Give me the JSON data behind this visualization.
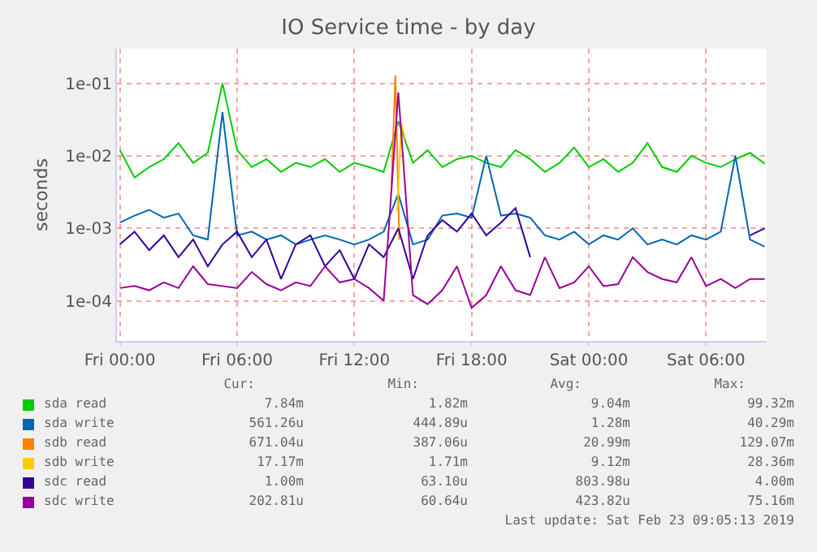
{
  "chart_data": {
    "type": "line",
    "title": "IO Service time - by day",
    "ylabel": "seconds",
    "log": "y",
    "grid": true,
    "legend": "bottom",
    "marker": "none",
    "line_style": "solid",
    "x": [
      "2019-02-22T00:00",
      "2019-02-22T00:45",
      "2019-02-22T01:30",
      "2019-02-22T02:15",
      "2019-02-22T03:00",
      "2019-02-22T03:45",
      "2019-02-22T04:30",
      "2019-02-22T05:15",
      "2019-02-22T06:00",
      "2019-02-22T06:45",
      "2019-02-22T07:30",
      "2019-02-22T08:15",
      "2019-02-22T09:00",
      "2019-02-22T09:45",
      "2019-02-22T10:30",
      "2019-02-22T11:15",
      "2019-02-22T12:00",
      "2019-02-22T12:45",
      "2019-02-22T13:30",
      "2019-02-22T14:15",
      "2019-02-22T15:00",
      "2019-02-22T15:45",
      "2019-02-22T16:30",
      "2019-02-22T17:15",
      "2019-02-22T18:00",
      "2019-02-22T18:45",
      "2019-02-22T19:30",
      "2019-02-22T20:15",
      "2019-02-22T21:00",
      "2019-02-22T21:45",
      "2019-02-22T22:30",
      "2019-02-22T23:15",
      "2019-02-23T00:00",
      "2019-02-23T00:45",
      "2019-02-23T01:30",
      "2019-02-23T02:15",
      "2019-02-23T03:00",
      "2019-02-23T03:45",
      "2019-02-23T04:30",
      "2019-02-23T05:15",
      "2019-02-23T06:00",
      "2019-02-23T06:45",
      "2019-02-23T07:30",
      "2019-02-23T08:15",
      "2019-02-23T09:00"
    ],
    "xlim": [
      "2019-02-21T23:51",
      "2019-02-23T09:06"
    ],
    "xticks": [
      {
        "value": "2019-02-22T00:00",
        "label": "Fri 00:00"
      },
      {
        "value": "2019-02-22T06:00",
        "label": "Fri 06:00"
      },
      {
        "value": "2019-02-22T12:00",
        "label": "Fri 12:00"
      },
      {
        "value": "2019-02-22T18:00",
        "label": "Fri 18:00"
      },
      {
        "value": "2019-02-23T00:00",
        "label": "Sat 00:00"
      },
      {
        "value": "2019-02-23T06:00",
        "label": "Sat 06:00"
      }
    ],
    "ylim": [
      2.8e-05,
      0.3
    ],
    "yticks": [
      {
        "value": 0.0001,
        "label": "1e-04"
      },
      {
        "value": 0.001,
        "label": "1e-03"
      },
      {
        "value": 0.01,
        "label": "1e-02"
      },
      {
        "value": 0.1,
        "label": "1e-01"
      }
    ],
    "series": [
      {
        "name": "sda read",
        "color": "#00cc00",
        "values": [
          0.012,
          0.005,
          0.007,
          0.009,
          0.015,
          0.008,
          0.011,
          0.1,
          0.012,
          0.007,
          0.009,
          0.006,
          0.008,
          0.007,
          0.009,
          0.006,
          0.008,
          0.007,
          0.006,
          0.03,
          0.008,
          0.012,
          0.007,
          0.009,
          0.01,
          0.008,
          0.007,
          0.012,
          0.009,
          0.006,
          0.008,
          0.013,
          0.007,
          0.009,
          0.006,
          0.008,
          0.015,
          0.007,
          0.006,
          0.01,
          0.008,
          0.007,
          0.009,
          0.011,
          0.0078
        ]
      },
      {
        "name": "sda write",
        "color": "#0066b3",
        "values": [
          0.0012,
          0.0015,
          0.0018,
          0.0014,
          0.0016,
          0.0008,
          0.0007,
          0.04,
          0.0008,
          0.0009,
          0.0007,
          0.0008,
          0.0006,
          0.0007,
          0.0008,
          0.0007,
          0.0006,
          0.0007,
          0.0009,
          0.003,
          0.0006,
          0.0007,
          0.0015,
          0.0016,
          0.0014,
          0.01,
          0.0015,
          0.0016,
          0.0014,
          0.0008,
          0.0007,
          0.0009,
          0.0006,
          0.0008,
          0.0007,
          0.001,
          0.0006,
          0.0007,
          0.0006,
          0.0008,
          0.0007,
          0.0009,
          0.01,
          0.0007,
          0.00056
        ]
      },
      {
        "name": "sdb read",
        "color": "#ff8000",
        "x": [
          "2019-02-22T13:54",
          "2019-02-22T14:06",
          "2019-02-22T14:18"
        ],
        "values": [
          0.004,
          0.129,
          0.0007
        ]
      },
      {
        "name": "sdb write",
        "color": "#ffcc00",
        "x": [
          "2019-02-22T14:12",
          "2019-02-22T14:24",
          "2019-02-22T14:36"
        ],
        "values": [
          0.0017,
          0.028,
          0.017
        ]
      },
      {
        "name": "sdc read",
        "color": "#330099",
        "values": [
          0.0006,
          0.0009,
          0.0005,
          0.0008,
          0.0004,
          0.0007,
          0.0003,
          0.0006,
          0.0009,
          0.0004,
          0.0007,
          0.0002,
          0.0006,
          0.0008,
          0.0003,
          0.0005,
          0.0002,
          0.0006,
          0.0004,
          0.001,
          0.0002,
          0.0008,
          0.0013,
          0.0009,
          0.0016,
          0.0008,
          0.0012,
          0.0019,
          0.0004,
          null,
          null,
          null,
          null,
          null,
          null,
          null,
          null,
          null,
          null,
          null,
          null,
          null,
          null,
          0.0008,
          0.001
        ]
      },
      {
        "name": "sdc write",
        "color": "#990099",
        "values": [
          0.00015,
          0.00016,
          0.00014,
          0.00018,
          0.00015,
          0.0003,
          0.00017,
          0.00016,
          0.00015,
          0.00025,
          0.00017,
          0.00014,
          0.00018,
          0.00016,
          0.0003,
          0.00018,
          0.0002,
          0.00015,
          0.0001,
          0.075,
          0.00012,
          9e-05,
          0.00014,
          0.0003,
          8e-05,
          0.00012,
          0.0003,
          0.00014,
          0.00012,
          0.0004,
          0.00015,
          0.00018,
          0.0003,
          0.00016,
          0.00017,
          0.0004,
          0.00025,
          0.0002,
          0.00018,
          0.0004,
          0.00016,
          0.0002,
          0.00015,
          0.0002,
          0.0002
        ]
      }
    ],
    "annotations": [
      "Cur:",
      "Min:",
      "Avg:",
      "Max:",
      "7.84m",
      "1.82m",
      "9.04m",
      "99.32m",
      "561.26u",
      "444.89u",
      "1.28m",
      "40.29m",
      "671.04u",
      "387.06u",
      "20.99m",
      "129.07m",
      "17.17m",
      "1.71m",
      "9.12m",
      "28.36m",
      "1.00m",
      "63.10u",
      "803.98u",
      "4.00m",
      "202.81u",
      "60.64u",
      "423.82u",
      "75.16m",
      "Last update: Sat Feb 23 09:05:13 2019"
    ]
  }
}
